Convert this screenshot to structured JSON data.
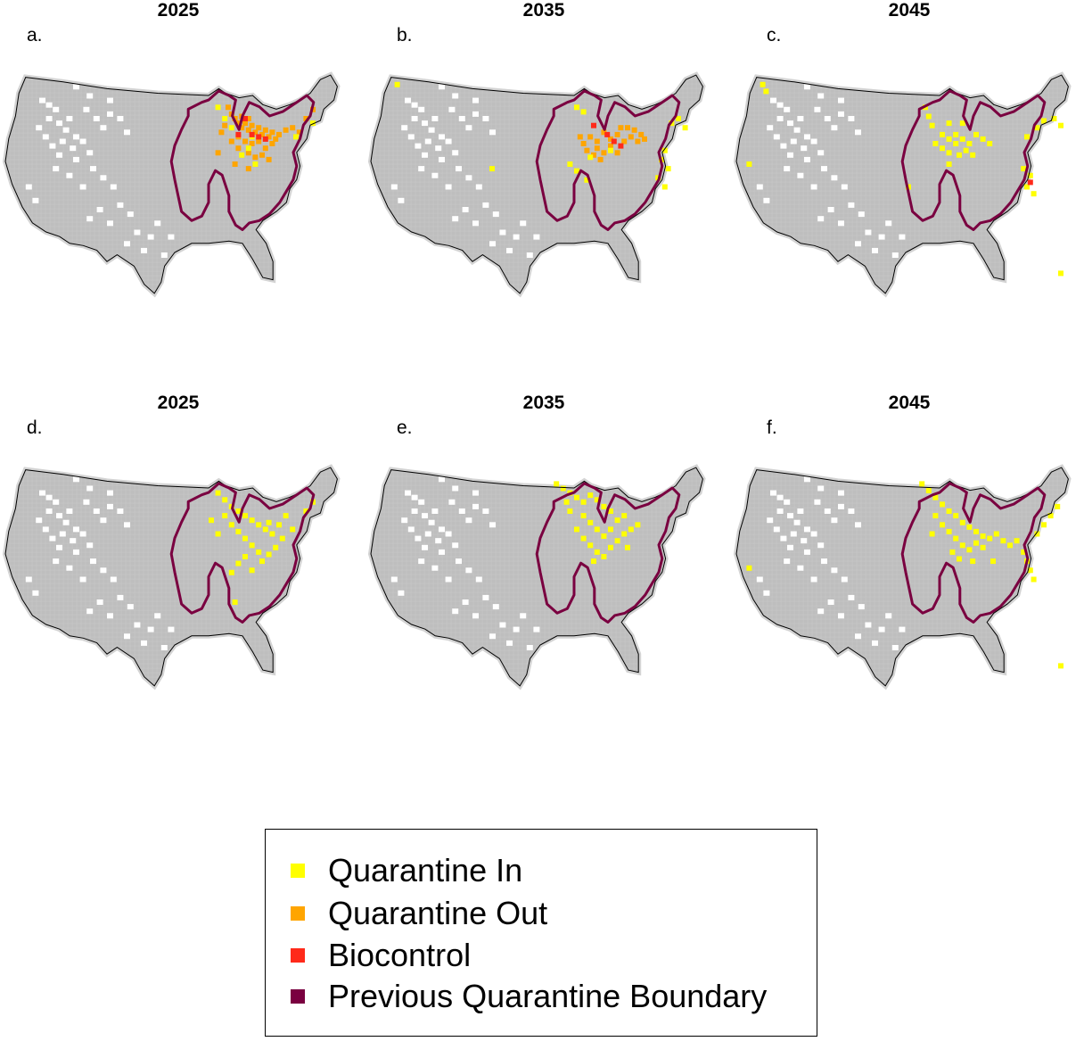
{
  "colors": {
    "land": "#bebebe",
    "unsuitable": "#ffffff",
    "quarantine_in": "#ffff00",
    "quarantine_out": "#ffa500",
    "biocontrol": "#ff2a1a",
    "previous_boundary": "#7a0040",
    "outline": "#000000"
  },
  "panels": [
    {
      "year": "2025",
      "letter": "a.",
      "cells": {
        "quarantine_in": [
          [
            0.66,
            0.24
          ],
          [
            0.72,
            0.28
          ],
          [
            0.71,
            0.33
          ],
          [
            0.62,
            0.15
          ],
          [
            0.64,
            0.2
          ],
          [
            0.85,
            0.28
          ],
          [
            0.9,
            0.22
          ],
          [
            0.73,
            0.4
          ],
          [
            0.69,
            0.36
          ]
        ],
        "quarantine_out": [
          [
            0.65,
            0.15
          ],
          [
            0.66,
            0.18
          ],
          [
            0.67,
            0.2
          ],
          [
            0.68,
            0.22
          ],
          [
            0.69,
            0.24
          ],
          [
            0.7,
            0.22
          ],
          [
            0.71,
            0.25
          ],
          [
            0.72,
            0.23
          ],
          [
            0.73,
            0.26
          ],
          [
            0.74,
            0.24
          ],
          [
            0.75,
            0.27
          ],
          [
            0.76,
            0.25
          ],
          [
            0.77,
            0.28
          ],
          [
            0.78,
            0.26
          ],
          [
            0.79,
            0.29
          ],
          [
            0.68,
            0.28
          ],
          [
            0.7,
            0.3
          ],
          [
            0.72,
            0.31
          ],
          [
            0.74,
            0.3
          ],
          [
            0.76,
            0.33
          ],
          [
            0.78,
            0.31
          ],
          [
            0.71,
            0.35
          ],
          [
            0.73,
            0.37
          ],
          [
            0.75,
            0.36
          ],
          [
            0.77,
            0.38
          ],
          [
            0.8,
            0.27
          ],
          [
            0.82,
            0.25
          ],
          [
            0.64,
            0.23
          ],
          [
            0.69,
            0.19
          ],
          [
            0.71,
            0.2
          ],
          [
            0.66,
            0.3
          ],
          [
            0.68,
            0.33
          ],
          [
            0.63,
            0.26
          ],
          [
            0.84,
            0.24
          ],
          [
            0.86,
            0.26
          ],
          [
            0.88,
            0.2
          ],
          [
            0.9,
            0.16
          ],
          [
            0.62,
            0.35
          ],
          [
            0.67,
            0.4
          ],
          [
            0.71,
            0.42
          ]
        ],
        "biocontrol": [
          [
            0.7,
            0.2
          ],
          [
            0.72,
            0.27
          ],
          [
            0.74,
            0.28
          ],
          [
            0.68,
            0.27
          ],
          [
            0.76,
            0.29
          ]
        ]
      }
    },
    {
      "year": "2035",
      "letter": "b.",
      "cells": {
        "quarantine_in": [
          [
            0.07,
            0.05
          ],
          [
            0.6,
            0.15
          ],
          [
            0.62,
            0.17
          ],
          [
            0.88,
            0.22
          ],
          [
            0.9,
            0.2
          ],
          [
            0.92,
            0.24
          ],
          [
            0.86,
            0.34
          ],
          [
            0.85,
            0.38
          ],
          [
            0.87,
            0.42
          ],
          [
            0.84,
            0.46
          ],
          [
            0.86,
            0.5
          ],
          [
            0.58,
            0.4
          ],
          [
            0.6,
            0.43
          ],
          [
            0.63,
            0.47
          ],
          [
            0.64,
            0.37
          ],
          [
            0.7,
            0.34
          ],
          [
            0.35,
            0.42
          ]
        ],
        "quarantine_out": [
          [
            0.64,
            0.28
          ],
          [
            0.66,
            0.3
          ],
          [
            0.68,
            0.26
          ],
          [
            0.7,
            0.29
          ],
          [
            0.72,
            0.27
          ],
          [
            0.74,
            0.3
          ],
          [
            0.76,
            0.28
          ],
          [
            0.78,
            0.3
          ],
          [
            0.66,
            0.33
          ],
          [
            0.68,
            0.35
          ],
          [
            0.7,
            0.32
          ],
          [
            0.72,
            0.35
          ],
          [
            0.62,
            0.31
          ],
          [
            0.65,
            0.36
          ],
          [
            0.67,
            0.38
          ],
          [
            0.73,
            0.24
          ],
          [
            0.75,
            0.24
          ],
          [
            0.77,
            0.25
          ],
          [
            0.79,
            0.27
          ],
          [
            0.8,
            0.29
          ],
          [
            0.61,
            0.28
          ],
          [
            0.63,
            0.34
          ]
        ],
        "biocontrol": [
          [
            0.65,
            0.23
          ],
          [
            0.71,
            0.3
          ],
          [
            0.73,
            0.32
          ],
          [
            0.69,
            0.27
          ]
        ]
      }
    },
    {
      "year": "2045",
      "letter": "c.",
      "cells": {
        "quarantine_in": [
          [
            0.07,
            0.05
          ],
          [
            0.08,
            0.08
          ],
          [
            0.55,
            0.15
          ],
          [
            0.56,
            0.19
          ],
          [
            0.57,
            0.23
          ],
          [
            0.6,
            0.27
          ],
          [
            0.62,
            0.29
          ],
          [
            0.64,
            0.31
          ],
          [
            0.58,
            0.31
          ],
          [
            0.6,
            0.33
          ],
          [
            0.62,
            0.35
          ],
          [
            0.64,
            0.27
          ],
          [
            0.66,
            0.29
          ],
          [
            0.68,
            0.31
          ],
          [
            0.7,
            0.27
          ],
          [
            0.72,
            0.29
          ],
          [
            0.74,
            0.31
          ],
          [
            0.65,
            0.36
          ],
          [
            0.67,
            0.34
          ],
          [
            0.69,
            0.36
          ],
          [
            0.62,
            0.4
          ],
          [
            0.85,
            0.28
          ],
          [
            0.88,
            0.24
          ],
          [
            0.9,
            0.21
          ],
          [
            0.93,
            0.2
          ],
          [
            0.95,
            0.23
          ],
          [
            0.84,
            0.42
          ],
          [
            0.86,
            0.45
          ],
          [
            0.85,
            0.5
          ],
          [
            0.87,
            0.53
          ],
          [
            0.03,
            0.4
          ],
          [
            0.95,
            0.88
          ],
          [
            0.5,
            0.5
          ],
          [
            0.62,
            0.22
          ],
          [
            0.66,
            0.22
          ]
        ],
        "quarantine_out": [],
        "biocontrol": [
          [
            0.86,
            0.48
          ]
        ]
      }
    },
    {
      "year": "2025",
      "letter": "d.",
      "cells": {
        "quarantine_in": [
          [
            0.62,
            0.12
          ],
          [
            0.64,
            0.15
          ],
          [
            0.66,
            0.18
          ],
          [
            0.68,
            0.2
          ],
          [
            0.7,
            0.22
          ],
          [
            0.72,
            0.24
          ],
          [
            0.74,
            0.26
          ],
          [
            0.76,
            0.28
          ],
          [
            0.78,
            0.3
          ],
          [
            0.8,
            0.26
          ],
          [
            0.82,
            0.22
          ],
          [
            0.84,
            0.28
          ],
          [
            0.66,
            0.26
          ],
          [
            0.68,
            0.29
          ],
          [
            0.7,
            0.32
          ],
          [
            0.72,
            0.35
          ],
          [
            0.74,
            0.38
          ],
          [
            0.7,
            0.4
          ],
          [
            0.68,
            0.43
          ],
          [
            0.66,
            0.47
          ],
          [
            0.72,
            0.46
          ],
          [
            0.75,
            0.42
          ],
          [
            0.77,
            0.39
          ],
          [
            0.79,
            0.36
          ],
          [
            0.67,
            0.6
          ],
          [
            0.88,
            0.2
          ],
          [
            0.9,
            0.16
          ],
          [
            0.6,
            0.24
          ],
          [
            0.62,
            0.3
          ],
          [
            0.64,
            0.22
          ],
          [
            0.77,
            0.25
          ],
          [
            0.81,
            0.32
          ]
        ],
        "quarantine_out": [],
        "biocontrol": []
      }
    },
    {
      "year": "2035",
      "letter": "e.",
      "cells": {
        "quarantine_in": [
          [
            0.54,
            0.08
          ],
          [
            0.56,
            0.1
          ],
          [
            0.58,
            0.12
          ],
          [
            0.6,
            0.14
          ],
          [
            0.62,
            0.16
          ],
          [
            0.64,
            0.13
          ],
          [
            0.66,
            0.15
          ],
          [
            0.68,
            0.18
          ],
          [
            0.7,
            0.2
          ],
          [
            0.62,
            0.22
          ],
          [
            0.64,
            0.25
          ],
          [
            0.66,
            0.28
          ],
          [
            0.68,
            0.31
          ],
          [
            0.6,
            0.28
          ],
          [
            0.62,
            0.32
          ],
          [
            0.64,
            0.35
          ],
          [
            0.66,
            0.38
          ],
          [
            0.68,
            0.4
          ],
          [
            0.7,
            0.36
          ],
          [
            0.72,
            0.33
          ],
          [
            0.74,
            0.3
          ],
          [
            0.76,
            0.28
          ],
          [
            0.78,
            0.26
          ],
          [
            0.58,
            0.2
          ],
          [
            0.57,
            0.16
          ],
          [
            0.72,
            0.24
          ],
          [
            0.74,
            0.22
          ],
          [
            0.7,
            0.28
          ],
          [
            0.65,
            0.42
          ],
          [
            0.75,
            0.36
          ]
        ],
        "quarantine_out": [],
        "biocontrol": []
      }
    },
    {
      "year": "2045",
      "letter": "f.",
      "cells": {
        "quarantine_in": [
          [
            0.54,
            0.08
          ],
          [
            0.56,
            0.11
          ],
          [
            0.58,
            0.14
          ],
          [
            0.6,
            0.17
          ],
          [
            0.62,
            0.2
          ],
          [
            0.64,
            0.22
          ],
          [
            0.66,
            0.25
          ],
          [
            0.68,
            0.27
          ],
          [
            0.7,
            0.29
          ],
          [
            0.72,
            0.31
          ],
          [
            0.6,
            0.26
          ],
          [
            0.62,
            0.29
          ],
          [
            0.64,
            0.32
          ],
          [
            0.66,
            0.35
          ],
          [
            0.68,
            0.37
          ],
          [
            0.63,
            0.38
          ],
          [
            0.65,
            0.41
          ],
          [
            0.7,
            0.34
          ],
          [
            0.72,
            0.36
          ],
          [
            0.74,
            0.32
          ],
          [
            0.76,
            0.3
          ],
          [
            0.78,
            0.33
          ],
          [
            0.8,
            0.35
          ],
          [
            0.82,
            0.33
          ],
          [
            0.84,
            0.38
          ],
          [
            0.85,
            0.42
          ],
          [
            0.86,
            0.46
          ],
          [
            0.87,
            0.5
          ],
          [
            0.88,
            0.3
          ],
          [
            0.9,
            0.26
          ],
          [
            0.92,
            0.22
          ],
          [
            0.94,
            0.18
          ],
          [
            0.03,
            0.45
          ],
          [
            0.95,
            0.88
          ],
          [
            0.58,
            0.22
          ],
          [
            0.57,
            0.3
          ],
          [
            0.69,
            0.42
          ],
          [
            0.75,
            0.42
          ]
        ],
        "quarantine_out": [],
        "biocontrol": []
      }
    }
  ],
  "legend": {
    "items": [
      {
        "key": "quarantine_in",
        "label": "Quarantine In",
        "color": "#ffff00"
      },
      {
        "key": "quarantine_out",
        "label": "Quarantine Out",
        "color": "#ffa500"
      },
      {
        "key": "biocontrol",
        "label": "Biocontrol",
        "color": "#ff2a1a"
      },
      {
        "key": "previous_boundary",
        "label": "Previous Quarantine Boundary",
        "color": "#7a0040"
      }
    ]
  }
}
